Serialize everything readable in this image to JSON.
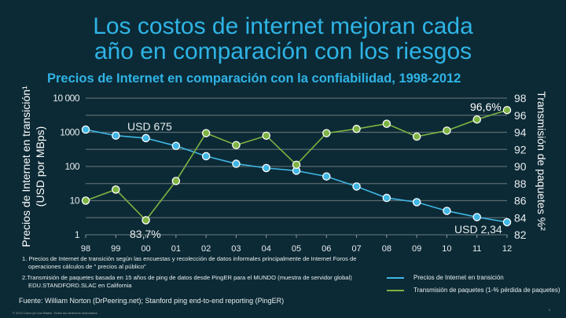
{
  "slide": {
    "title_line1": "Los costos de internet mejoran cada",
    "title_line2": "año en comparación con los riesgos"
  },
  "chart_data": {
    "type": "line",
    "title": "Precios de Internet en comparación con la confiabilidad, 1998-2012",
    "categories": [
      "98",
      "99",
      "00",
      "01",
      "02",
      "03",
      "04",
      "05",
      "06",
      "07",
      "08",
      "09",
      "10",
      "11",
      "12"
    ],
    "ylabel_left_line1": "Precios de Internet en transición¹",
    "ylabel_left_line2": "(USD por MBps)",
    "ylabel_right": "Transmisión de paquetes %²",
    "yleft": {
      "scale": "log",
      "range": [
        1,
        10000
      ],
      "ticks": [
        "1",
        "10",
        "100",
        "1000",
        "10 000"
      ],
      "tick_values": [
        1,
        10,
        100,
        1000,
        10000
      ]
    },
    "yright": {
      "scale": "linear",
      "range": [
        82,
        98
      ],
      "ticks": [
        "82",
        "84",
        "86",
        "88",
        "90",
        "92",
        "94",
        "96",
        "98"
      ]
    },
    "grid": true,
    "series": [
      {
        "name": "Precios de Internet en transición",
        "axis": "left",
        "color": "#3fb6e4",
        "values": [
          1200,
          800,
          675,
          400,
          200,
          120,
          90,
          75,
          51,
          26,
          12,
          9,
          5,
          3.3,
          2.34
        ]
      },
      {
        "name": "Transmisión de paquetes (1-% pérdida de paquetes)",
        "axis": "right",
        "color": "#7db342",
        "values": [
          86.0,
          87.3,
          83.7,
          88.3,
          93.9,
          92.5,
          93.6,
          90.2,
          93.9,
          94.4,
          95.0,
          93.5,
          94.2,
          95.5,
          96.6
        ]
      }
    ],
    "annotations": [
      "USD 675",
      "83,7%",
      "96,6%",
      "USD 2,34"
    ],
    "legend_placement": "bottom-right"
  },
  "notes": {
    "n1a": "1. Precios de Internet de transición según las encuestas y recolección de datos informales principalmente de Internet Foros de",
    "n1b": "operaciones cálculos de \" precios al público\"",
    "n2a": "2.Transmisión de paquetes basada en 15 años de ping de datos desde PingER para el MUNDO (muestra de servidor global)",
    "n2b": "EDU.STANDFORD.SLAC en California",
    "source": "Fuente: William Norton (DrPeering.net); Stanford ping end-to-end reporting (PingER)",
    "copyright": "© 2013 Cisco y/o sus filiales. Todos los derechos reservados.",
    "page": "2"
  }
}
